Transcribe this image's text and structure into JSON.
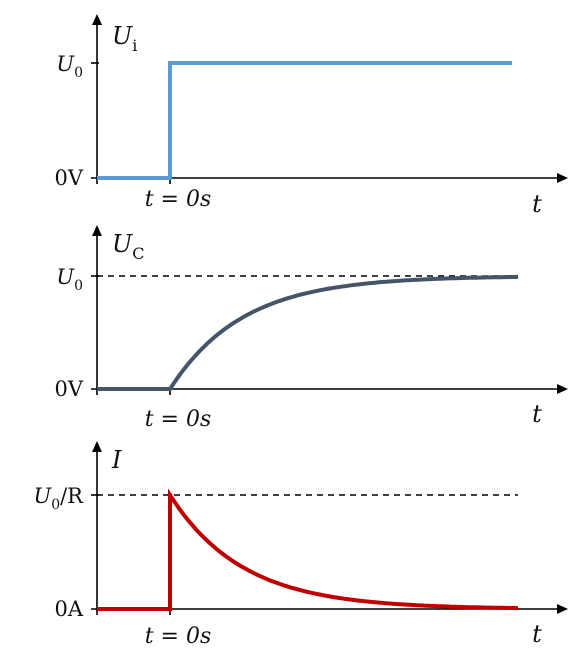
{
  "chart_data": [
    {
      "type": "line",
      "y_axis_label": "U",
      "y_axis_label_sub": "i",
      "x_axis_label": "t",
      "time_marker_label": "t = 0s",
      "y_ticks": [
        {
          "key": "zero",
          "main": "0V",
          "sub": ""
        },
        {
          "key": "level",
          "main": "U",
          "sub": "0"
        }
      ],
      "series": [
        {
          "color": "#5b9bd5",
          "shape": "step",
          "points": [
            [
              -1,
              0
            ],
            [
              0,
              0
            ],
            [
              0,
              1
            ],
            [
              4.7,
              1
            ]
          ]
        }
      ],
      "asymptote": null,
      "xlim": [
        -1,
        5.2
      ],
      "ylim": [
        0,
        1
      ]
    },
    {
      "type": "line",
      "y_axis_label": "U",
      "y_axis_label_sub": "C",
      "x_axis_label": "t",
      "time_marker_label": "t = 0s",
      "y_ticks": [
        {
          "key": "zero",
          "main": "0V",
          "sub": ""
        },
        {
          "key": "level",
          "main": "U",
          "sub": "0"
        }
      ],
      "series": [
        {
          "color": "#44546a",
          "shape": "charge",
          "t_start": -1,
          "t_step": 0,
          "t_end": 4.8,
          "tau": 1
        }
      ],
      "asymptote": {
        "y": 1,
        "style": "dashed"
      },
      "xlim": [
        -1,
        5.2
      ],
      "ylim": [
        0,
        1
      ]
    },
    {
      "type": "line",
      "y_axis_label": "I",
      "y_axis_label_sub": "",
      "x_axis_label": "t",
      "time_marker_label": "t = 0s",
      "y_ticks": [
        {
          "key": "zero",
          "main": "0A",
          "sub": ""
        },
        {
          "key": "level",
          "main": "U",
          "sub": "0",
          "suffix": "/R"
        }
      ],
      "series": [
        {
          "color": "#c00000",
          "shape": "discharge_spike",
          "t_start": -1,
          "t_step": 0,
          "t_end": 4.8,
          "tau": 1
        }
      ],
      "asymptote": {
        "y": 1,
        "style": "dashed"
      },
      "xlim": [
        -1,
        5.2
      ],
      "ylim": [
        0,
        1
      ]
    }
  ]
}
